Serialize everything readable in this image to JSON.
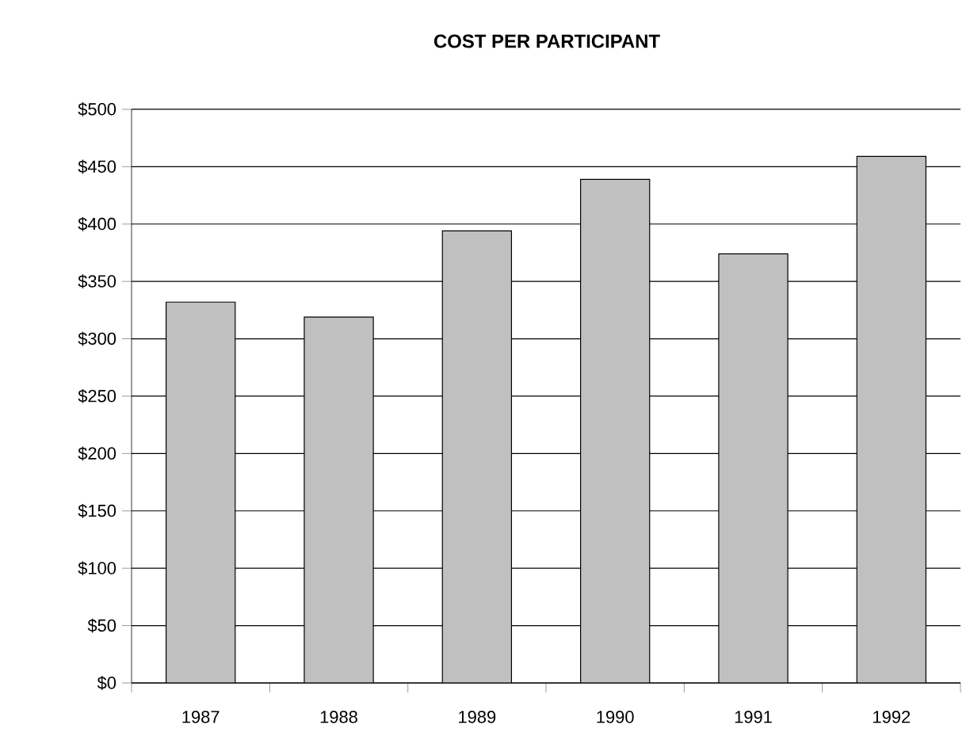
{
  "chart_data": {
    "type": "bar",
    "title": "COST PER PARTICIPANT",
    "categories": [
      "1987",
      "1988",
      "1989",
      "1990",
      "1991",
      "1992"
    ],
    "values": [
      332,
      319,
      394,
      439,
      374,
      459
    ],
    "color": "#c0c0c0",
    "ylim": [
      0,
      500
    ],
    "yticks": [
      {
        "value": 0,
        "label": "$0"
      },
      {
        "value": 50,
        "label": "$50"
      },
      {
        "value": 100,
        "label": "$100"
      },
      {
        "value": 150,
        "label": "$150"
      },
      {
        "value": 200,
        "label": "$200"
      },
      {
        "value": 250,
        "label": "$250"
      },
      {
        "value": 300,
        "label": "$300"
      },
      {
        "value": 350,
        "label": "$350"
      },
      {
        "value": 400,
        "label": "$400"
      },
      {
        "value": 450,
        "label": "$450"
      },
      {
        "value": 500,
        "label": "$500"
      }
    ],
    "grid": "y"
  }
}
